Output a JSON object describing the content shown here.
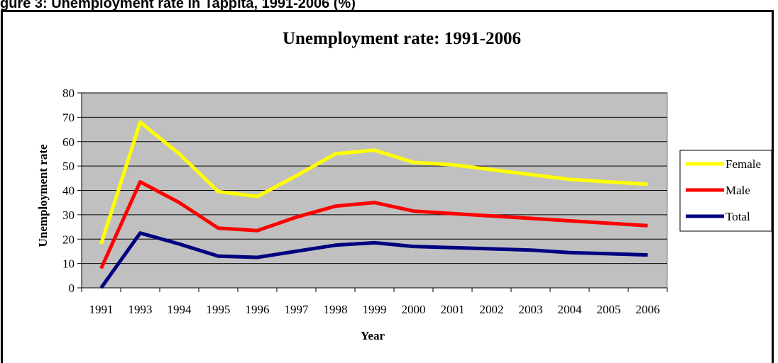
{
  "caption": "gure 3: Unemployment rate in Tappita, 1991-2006 (%)",
  "chart_data": {
    "type": "line",
    "title": "Unemployment rate: 1991-2006",
    "xlabel": "Year",
    "ylabel": "Unemployment rate",
    "ylim": [
      0,
      80
    ],
    "yticks": [
      0,
      10,
      20,
      30,
      40,
      50,
      60,
      70,
      80
    ],
    "grid": true,
    "legend_position": "right",
    "categories": [
      "1991",
      "1993",
      "1994",
      "1995",
      "1996",
      "1997",
      "1998",
      "1999",
      "2000",
      "2001",
      "2002",
      "2003",
      "2004",
      "2005",
      "2006"
    ],
    "series": [
      {
        "name": "Female",
        "color": "#FFFF00",
        "values": [
          18,
          68,
          55,
          39.5,
          37.5,
          46,
          55,
          56.5,
          51.5,
          50.5,
          48.5,
          46.5,
          44.5,
          43.5,
          42.5
        ]
      },
      {
        "name": "Male",
        "color": "#FF0000",
        "values": [
          8,
          43.5,
          35,
          24.5,
          23.5,
          29,
          33.5,
          35,
          31.5,
          30.5,
          29.5,
          28.5,
          27.5,
          26.5,
          25.5
        ]
      },
      {
        "name": "Total",
        "color": "#000080",
        "values": [
          0,
          22.5,
          18,
          13,
          12.5,
          15,
          17.5,
          18.5,
          17,
          16.5,
          16,
          15.5,
          14.5,
          14,
          13.5
        ]
      }
    ],
    "plot_background": "#C0C0C0"
  }
}
